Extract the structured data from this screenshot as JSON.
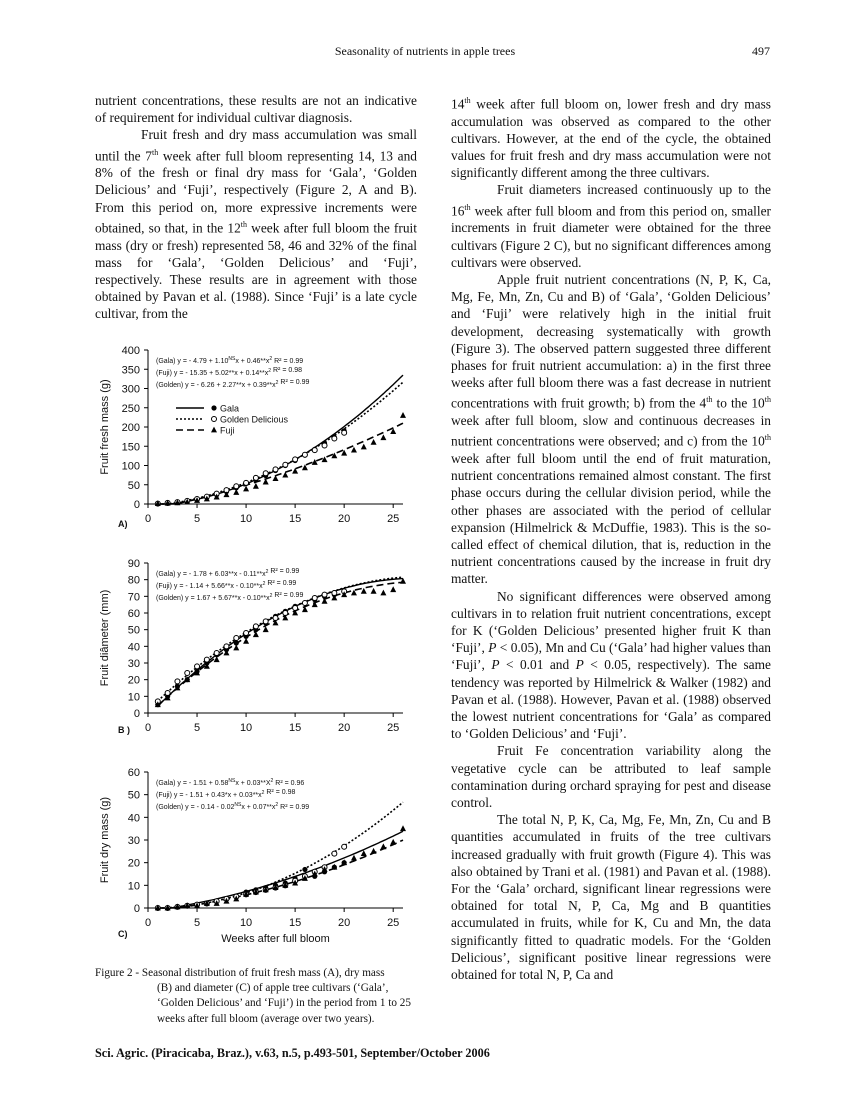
{
  "header": {
    "running_title": "Seasonality of nutrients in apple trees",
    "page_number": "497"
  },
  "left_text": {
    "p1": "nutrient concentrations, these results are not an indicative of requirement for individual cultivar diagnosis.",
    "p2_a": "Fruit fresh and dry mass accumulation was small until the 7",
    "p2_sup1": "th",
    "p2_b": " week after full bloom representing 14, 13 and 8% of the fresh or final dry mass for ‘Gala’, ‘Golden Delicious’ and ‘Fuji’, respectively (Figure 2, A and B). From this period on, more expressive increments were obtained, so that, in the 12",
    "p2_sup2": "th",
    "p2_c": " week after full bloom the fruit mass (dry or fresh) represented 58, 46 and 32% of the final mass for ‘Gala’, ‘Golden Delicious’ and ‘Fuji’, respectively. These results are in agreement with those obtained by Pavan et al. (1988). Since ‘Fuji’ is a late cycle cultivar, from the"
  },
  "right_text": {
    "p1_a": "14",
    "p1_sup": "th",
    "p1_b": " week after full bloom on, lower fresh and dry mass accumulation was observed as compared to the other cultivars. However, at the end of the cycle, the obtained values for fruit fresh and dry mass accumulation were not significantly different among the three cultivars.",
    "p2_a": "Fruit diameters increased continuously up to the 16",
    "p2_sup": "th",
    "p2_b": " week after full bloom and from this period on, smaller increments in fruit diameter were obtained for the three cultivars (Figure 2 C), but no significant differences among cultivars were observed.",
    "p3_a": "Apple fruit nutrient concentrations (N, P, K, Ca, Mg, Fe, Mn, Zn, Cu and B) of ‘Gala’, ‘Golden Delicious’ and ‘Fuji’ were relatively high in the initial fruit development, decreasing systematically with growth (Figure 3). The observed pattern suggested three different phases for fruit nutrient accumulation: a) in the first three weeks after full bloom there was a fast decrease in nutrient concentrations with fruit growth; b) from the 4",
    "p3_sup1": "th",
    "p3_b": " to the 10",
    "p3_sup2": "th",
    "p3_c": " week after full bloom, slow and continuous decreases in nutrient concentrations were observed; and c) from the 10",
    "p3_sup3": "th",
    "p3_d": " week after full bloom until the end of fruit maturation, nutrient concentrations remained almost constant. The first phase occurs during the cellular division period, while the other phases are associated with the period of cellular expansion (Hilmelrick & McDuffie, 1983). This is the so-called effect of chemical dilution, that is, reduction in the nutrient concentrations caused by the increase in fruit dry matter.",
    "p4_a": "No significant differences were observed among cultivars in to relation fruit nutrient concentrations, except for K (‘Golden Delicious’ presented higher fruit K than ‘Fuji’, ",
    "p4_P1": "P",
    "p4_b": " < 0.05), Mn and Cu (‘Gala’ had higher values than ‘Fuji’, ",
    "p4_P2": "P",
    "p4_c": " < 0.01 and ",
    "p4_P3": "P",
    "p4_d": " < 0.05, respectively). The same tendency was reported by Hilmelrick & Walker (1982) and Pavan et al. (1988). However, Pavan et al. (1988) observed the lowest nutrient concentrations for ‘Gala’ as compared to ‘Golden Delicious’ and ‘Fuji’.",
    "p5": "Fruit Fe concentration variability along the vegetative cycle can be attributed to leaf sample contamination during orchard spraying for pest and disease control.",
    "p6": "The total N, P, K, Ca, Mg, Fe, Mn, Zn, Cu and B quantities accumulated in fruits of the tree cultivars increased gradually with fruit growth (Figure 4). This was also obtained by Trani et al. (1981) and Pavan et al. (1988). For the ‘Gala’ orchard, significant linear regressions were obtained for total N, P, Ca, Mg and B quantities accumulated in fruits, while for K, Cu and Mn, the data significantly fitted to quadratic models. For the ‘Golden Delicious’, significant positive linear regressions were obtained for total N, P, Ca and"
  },
  "figure": {
    "caption_label": "Figure 2 - Seasonal distribution of fruit fresh mass (A), dry mass",
    "caption_rest": "(B) and diameter (C) of apple tree cultivars (‘Gala’, ‘Golden Delicious’ and ‘Fuji’) in the period from 1 to 25 weeks after full bloom (average over two years).",
    "legend": {
      "gala": "Gala",
      "golden": "Golden Delicious",
      "fuji": "Fuji"
    },
    "xlabel": "Weeks after full bloom"
  },
  "chart_data": [
    {
      "type": "scatter",
      "panel_label": "A)",
      "ylabel": "Fruit fresh mass (g)",
      "xlim": [
        0,
        26
      ],
      "ylim": [
        0,
        400
      ],
      "xticks": [
        0,
        5,
        10,
        15,
        20,
        25
      ],
      "yticks": [
        0,
        50,
        100,
        150,
        200,
        250,
        300,
        350,
        400
      ],
      "equations": [
        {
          "cultivar": "(Gala)",
          "eq": "y =   - 4.79 + 1.10",
          "sup": "NS",
          "eq2": "x + 0.46**x",
          "sup2": "2",
          "r2": "R² = 0.99"
        },
        {
          "cultivar": "(Fuji)",
          "eq": "y =   - 15.35 + 5.02**x + 0.14**x",
          "sup": "2",
          "eq2": "",
          "sup2": "",
          "r2": "R² = 0.98"
        },
        {
          "cultivar": "(Golden)",
          "eq": "y =   - 6.26 + 2.27**x + 0.39**x",
          "sup": "2",
          "eq2": "",
          "sup2": "",
          "r2": "R² = 0.99"
        }
      ],
      "fits": {
        "gala": [
          -4.79,
          1.1,
          0.46
        ],
        "golden": [
          -6.26,
          2.27,
          0.39
        ],
        "fuji": [
          -15.35,
          5.02,
          0.14
        ]
      },
      "series": [
        {
          "name": "Gala",
          "x": [
            1,
            2,
            3,
            4,
            5,
            6,
            7,
            8,
            9,
            10,
            11,
            12,
            13,
            14,
            15,
            16,
            17,
            18,
            19,
            20
          ],
          "y": [
            1,
            2,
            4,
            7,
            11,
            17,
            24,
            32,
            42,
            53,
            63,
            74,
            87,
            100,
            113,
            127,
            142,
            158,
            173,
            190
          ]
        },
        {
          "name": "Golden Delicious",
          "x": [
            1,
            2,
            3,
            4,
            5,
            6,
            7,
            8,
            9,
            10,
            11,
            12,
            13,
            14,
            15,
            16,
            17,
            18,
            19,
            20
          ],
          "y": [
            1,
            3,
            5,
            8,
            13,
            19,
            27,
            36,
            46,
            55,
            68,
            80,
            90,
            102,
            116,
            128,
            140,
            152,
            170,
            185
          ]
        },
        {
          "name": "Fuji",
          "x": [
            1,
            2,
            3,
            4,
            5,
            6,
            7,
            8,
            9,
            10,
            11,
            12,
            13,
            14,
            15,
            16,
            17,
            18,
            19,
            20,
            21,
            22,
            23,
            24,
            25,
            26
          ],
          "y": [
            1,
            2,
            3,
            5,
            9,
            13,
            18,
            24,
            30,
            39,
            46,
            57,
            66,
            75,
            85,
            94,
            108,
            115,
            125,
            132,
            140,
            148,
            160,
            172,
            188,
            230
          ]
        }
      ]
    },
    {
      "type": "scatter",
      "panel_label": "B )",
      "ylabel": "Fruit diâmeter  (mm)",
      "xlim": [
        0,
        26
      ],
      "ylim": [
        0,
        90
      ],
      "xticks": [
        0,
        5,
        10,
        15,
        20,
        25
      ],
      "yticks": [
        0,
        10,
        20,
        30,
        40,
        50,
        60,
        70,
        80,
        90
      ],
      "equations": [
        {
          "cultivar": "(Gala)",
          "eq": "y =  - 1.78 + 6.03**x - 0.11**x",
          "sup": "2",
          "eq2": "",
          "sup2": "",
          "r2": "R² = 0.99"
        },
        {
          "cultivar": "(Fuji)",
          "eq": "y =  - 1.14 + 5.66**x - 0.10**x",
          "sup": "2",
          "eq2": "",
          "sup2": "",
          "r2": "R² = 0.99"
        },
        {
          "cultivar": "(Golden)",
          "eq": "y =  1.67 + 5.67**x - 0.10**x",
          "sup": "2",
          "eq2": "",
          "sup2": "",
          "r2": "R² = 0.99"
        }
      ],
      "fits": {
        "gala": [
          -1.78,
          6.03,
          -0.11
        ],
        "golden": [
          1.67,
          5.67,
          -0.1
        ],
        "fuji": [
          -1.14,
          5.66,
          -0.1
        ]
      },
      "series": [
        {
          "name": "Gala",
          "x": [
            1,
            2,
            3,
            4,
            5,
            6,
            7,
            8,
            9,
            10,
            11,
            12,
            13,
            14,
            15,
            16,
            17,
            18,
            19,
            20
          ],
          "y": [
            5,
            10,
            16,
            20,
            25,
            30,
            35,
            38,
            42,
            46,
            50,
            54,
            58,
            61,
            64,
            66,
            68,
            70,
            71,
            73
          ]
        },
        {
          "name": "Golden Delicious",
          "x": [
            1,
            2,
            3,
            4,
            5,
            6,
            7,
            8,
            9,
            10,
            11,
            12,
            13,
            14,
            15,
            16,
            17,
            18,
            19,
            20
          ],
          "y": [
            7,
            12,
            19,
            24,
            28,
            32,
            36,
            40,
            45,
            48,
            52,
            55,
            57,
            60,
            63,
            66,
            69,
            71,
            72,
            73
          ]
        },
        {
          "name": "Fuji",
          "x": [
            1,
            2,
            3,
            4,
            5,
            6,
            7,
            8,
            9,
            10,
            11,
            12,
            13,
            14,
            15,
            16,
            17,
            18,
            19,
            20,
            21,
            22,
            23,
            24,
            25,
            26
          ],
          "y": [
            5,
            9,
            15,
            20,
            24,
            28,
            32,
            36,
            39,
            43,
            47,
            50,
            54,
            57,
            60,
            62,
            65,
            67,
            69,
            71,
            72,
            73,
            73,
            72,
            74,
            79
          ]
        }
      ]
    },
    {
      "type": "scatter",
      "panel_label": "C)",
      "ylabel": "Fruit dry mass (g)",
      "xlabel": "Weeks after full bloom",
      "xlim": [
        0,
        26
      ],
      "ylim": [
        0,
        60
      ],
      "xticks": [
        0,
        5,
        10,
        15,
        20,
        25
      ],
      "yticks": [
        0,
        10,
        20,
        30,
        40,
        50,
        60
      ],
      "equations": [
        {
          "cultivar": "(Gala)",
          "eq": "y =  - 1.51 + 0.58",
          "sup": "NS",
          "eq2": "x + 0.03**X",
          "sup2": "2",
          "r2": "R² = 0.96"
        },
        {
          "cultivar": "(Fuji)",
          "eq": "y =  - 1.51 + 0.43*x + 0.03**x",
          "sup": "2",
          "eq2": "",
          "sup2": "",
          "r2": "R² = 0.98"
        },
        {
          "cultivar": "(Golden)",
          "eq": "y =  - 0.14 - 0.02",
          "sup": "NS",
          "eq2": "x + 0.07**x",
          "sup2": "2",
          "r2": "R² = 0.99"
        }
      ],
      "fits": {
        "gala": [
          -1.51,
          0.58,
          0.03
        ],
        "golden": [
          -0.14,
          -0.02,
          0.07
        ],
        "fuji": [
          -1.51,
          0.43,
          0.03
        ]
      },
      "series": [
        {
          "name": "Gala",
          "x": [
            1,
            2,
            3,
            4,
            5,
            6,
            7,
            8,
            9,
            10,
            11,
            12,
            13,
            14,
            15,
            16,
            17,
            18,
            19,
            20
          ],
          "y": [
            0,
            0,
            0.5,
            1,
            1.5,
            2,
            3,
            4,
            5,
            7,
            8,
            9,
            10,
            11,
            13,
            17,
            14,
            16,
            18,
            20
          ]
        },
        {
          "name": "Golden Delicious",
          "x": [
            1,
            2,
            3,
            4,
            5,
            6,
            7,
            8,
            9,
            10,
            11,
            12,
            13,
            14,
            15,
            16,
            17,
            18,
            19,
            20
          ],
          "y": [
            0,
            0,
            0.5,
            1,
            1.5,
            2,
            3,
            4,
            5,
            6,
            7,
            8,
            9,
            10,
            12,
            14,
            16,
            18,
            24,
            27
          ]
        },
        {
          "name": "Fuji",
          "x": [
            1,
            2,
            3,
            4,
            5,
            6,
            7,
            8,
            9,
            10,
            11,
            12,
            13,
            14,
            15,
            16,
            17,
            18,
            19,
            20,
            21,
            22,
            23,
            24,
            25,
            26
          ],
          "y": [
            0,
            0,
            0.5,
            1,
            1,
            2,
            2,
            3,
            4,
            6,
            7,
            8,
            9,
            10,
            11,
            13,
            15,
            17,
            18,
            20,
            22,
            24,
            25,
            27,
            29,
            35
          ]
        }
      ]
    }
  ],
  "footer": {
    "citation": "Sci. Agric. (Piracicaba, Braz.), v.63, n.5, p.493-501, September/October 2006"
  }
}
